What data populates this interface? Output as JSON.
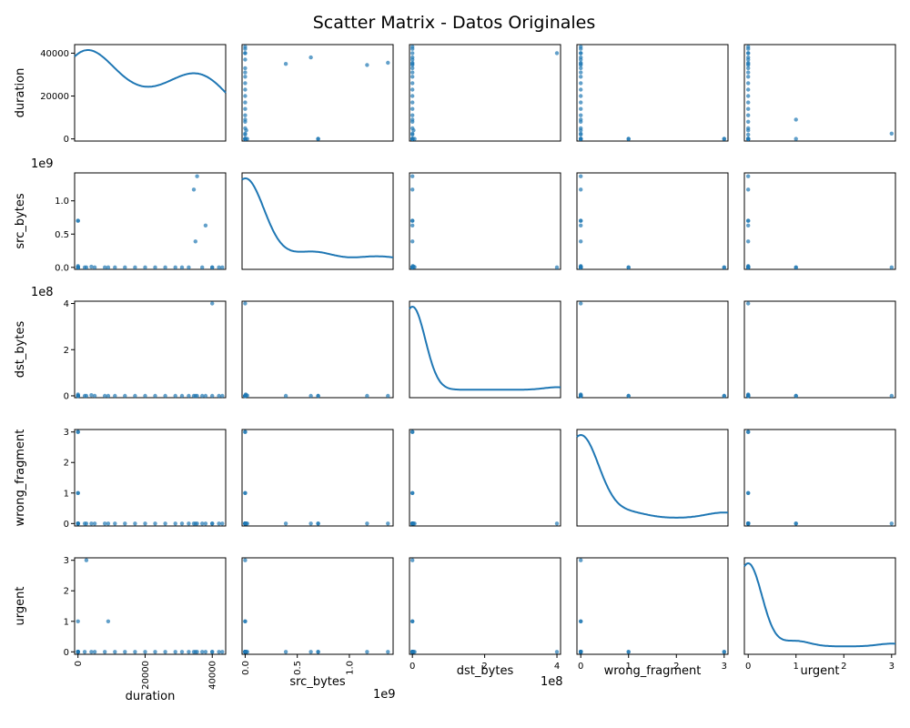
{
  "chart_data": {
    "type": "scatter",
    "title": "Scatter Matrix - Datos Originales",
    "diagonal": "kde",
    "point_color": "#1f77b4",
    "variables": [
      {
        "name": "duration",
        "range": [
          -1000,
          44000
        ],
        "ticks": [
          0,
          20000,
          40000
        ],
        "tick_labels": [
          "0",
          "20000",
          "40000"
        ],
        "offset_label": "",
        "x_tick_rotation": 90,
        "bottom_label_offset": 28
      },
      {
        "name": "src_bytes",
        "range": [
          -30000000,
          1420000000
        ],
        "ticks": [
          0,
          500000000,
          1000000000
        ],
        "tick_labels": [
          "0.0",
          "0.5",
          "1.0"
        ],
        "offset_label": "1e9",
        "x_tick_rotation": 90,
        "bottom_label_offset": 12
      },
      {
        "name": "dst_bytes",
        "range": [
          -8000000,
          410000000
        ],
        "ticks": [
          0,
          200000000,
          400000000
        ],
        "tick_labels": [
          "0",
          "2",
          "4"
        ],
        "offset_label": "1e8",
        "x_tick_rotation": 0,
        "bottom_label_offset": 0
      },
      {
        "name": "wrong_fragment",
        "range": [
          -0.08,
          3.08
        ],
        "ticks": [
          0,
          1,
          2,
          3
        ],
        "tick_labels": [
          "0",
          "1",
          "2",
          "3"
        ],
        "offset_label": "",
        "x_tick_rotation": 0,
        "bottom_label_offset": 0
      },
      {
        "name": "urgent",
        "range": [
          -0.08,
          3.08
        ],
        "ticks": [
          0,
          1,
          2,
          3
        ],
        "tick_labels": [
          "0",
          "1",
          "2",
          "3"
        ],
        "offset_label": "",
        "x_tick_rotation": 0,
        "bottom_label_offset": 0
      }
    ],
    "records": [
      {
        "duration": 0,
        "src_bytes": 0,
        "dst_bytes": 0,
        "wrong_fragment": 0,
        "urgent": 0
      },
      {
        "duration": 2000,
        "src_bytes": 1000,
        "dst_bytes": 500,
        "wrong_fragment": 0,
        "urgent": 0
      },
      {
        "duration": 5000,
        "src_bytes": 2000,
        "dst_bytes": 1000,
        "wrong_fragment": 0,
        "urgent": 0
      },
      {
        "duration": 8000,
        "src_bytes": 300,
        "dst_bytes": 200,
        "wrong_fragment": 0,
        "urgent": 0
      },
      {
        "duration": 11000,
        "src_bytes": 500,
        "dst_bytes": 300,
        "wrong_fragment": 0,
        "urgent": 0
      },
      {
        "duration": 14000,
        "src_bytes": 800,
        "dst_bytes": 400,
        "wrong_fragment": 0,
        "urgent": 0
      },
      {
        "duration": 17000,
        "src_bytes": 200,
        "dst_bytes": 100,
        "wrong_fragment": 0,
        "urgent": 0
      },
      {
        "duration": 20000,
        "src_bytes": 400,
        "dst_bytes": 200,
        "wrong_fragment": 0,
        "urgent": 0
      },
      {
        "duration": 23000,
        "src_bytes": 600,
        "dst_bytes": 300,
        "wrong_fragment": 0,
        "urgent": 0
      },
      {
        "duration": 26000,
        "src_bytes": 300,
        "dst_bytes": 200,
        "wrong_fragment": 0,
        "urgent": 0
      },
      {
        "duration": 29000,
        "src_bytes": 700,
        "dst_bytes": 300,
        "wrong_fragment": 0,
        "urgent": 0
      },
      {
        "duration": 31000,
        "src_bytes": 500,
        "dst_bytes": 200,
        "wrong_fragment": 0,
        "urgent": 0
      },
      {
        "duration": 33000,
        "src_bytes": 200,
        "dst_bytes": 100,
        "wrong_fragment": 0,
        "urgent": 0
      },
      {
        "duration": 37000,
        "src_bytes": 400,
        "dst_bytes": 300,
        "wrong_fragment": 0,
        "urgent": 0
      },
      {
        "duration": 40000,
        "src_bytes": 300,
        "dst_bytes": 200,
        "wrong_fragment": 0,
        "urgent": 0
      },
      {
        "duration": 42000,
        "src_bytes": 500,
        "dst_bytes": 400,
        "wrong_fragment": 0,
        "urgent": 0
      },
      {
        "duration": 43000,
        "src_bytes": 100,
        "dst_bytes": 100,
        "wrong_fragment": 0,
        "urgent": 0
      },
      {
        "duration": 4000,
        "src_bytes": 10000000,
        "dst_bytes": 3000000,
        "wrong_fragment": 0,
        "urgent": 0
      },
      {
        "duration": 0,
        "src_bytes": 5000000,
        "dst_bytes": 6000000,
        "wrong_fragment": 0,
        "urgent": 0
      },
      {
        "duration": 0,
        "src_bytes": 20000000,
        "dst_bytes": 1000000,
        "wrong_fragment": 0,
        "urgent": 0
      },
      {
        "duration": 0,
        "src_bytes": 700000000,
        "dst_bytes": 0,
        "wrong_fragment": 0,
        "urgent": 0
      },
      {
        "duration": 35000,
        "src_bytes": 390000000,
        "dst_bytes": 0,
        "wrong_fragment": 0,
        "urgent": 0
      },
      {
        "duration": 38000,
        "src_bytes": 630000000,
        "dst_bytes": 0,
        "wrong_fragment": 0,
        "urgent": 0
      },
      {
        "duration": 34500,
        "src_bytes": 1170000000,
        "dst_bytes": 0,
        "wrong_fragment": 0,
        "urgent": 0
      },
      {
        "duration": 35500,
        "src_bytes": 1370000000,
        "dst_bytes": 0,
        "wrong_fragment": 0,
        "urgent": 0
      },
      {
        "duration": 0,
        "src_bytes": 700000000,
        "dst_bytes": 0,
        "wrong_fragment": 0,
        "urgent": 0
      },
      {
        "duration": 40000,
        "src_bytes": 0,
        "dst_bytes": 400000000,
        "wrong_fragment": 0,
        "urgent": 0
      },
      {
        "duration": 9000,
        "src_bytes": 0,
        "dst_bytes": 0,
        "wrong_fragment": 0,
        "urgent": 1
      },
      {
        "duration": 2500,
        "src_bytes": 0,
        "dst_bytes": 0,
        "wrong_fragment": 0,
        "urgent": 3
      },
      {
        "duration": 0,
        "src_bytes": 0,
        "dst_bytes": 0,
        "wrong_fragment": 0,
        "urgent": 1
      },
      {
        "duration": 0,
        "src_bytes": 0,
        "dst_bytes": 0,
        "wrong_fragment": 3,
        "urgent": 0
      },
      {
        "duration": 0,
        "src_bytes": 0,
        "dst_bytes": 0,
        "wrong_fragment": 1,
        "urgent": 0
      },
      {
        "duration": 0,
        "src_bytes": 500,
        "dst_bytes": 0,
        "wrong_fragment": 1,
        "urgent": 0
      },
      {
        "duration": 0,
        "src_bytes": 0,
        "dst_bytes": 0,
        "wrong_fragment": 3,
        "urgent": 0
      }
    ]
  }
}
